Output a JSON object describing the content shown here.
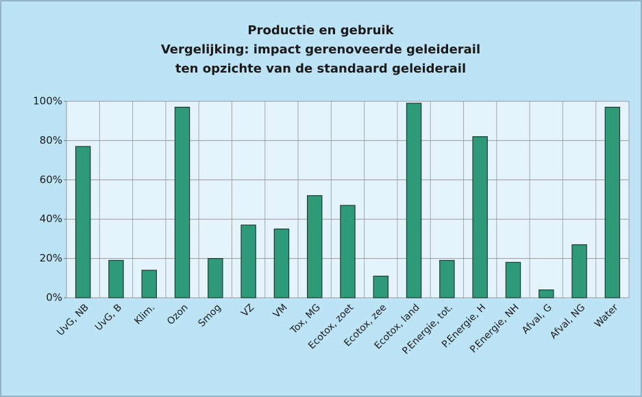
{
  "chart_data": {
    "type": "bar",
    "title": [
      "Productie en gebruik",
      "Vergelijking: impact gerenoveerde geleiderail",
      "ten opzichte van de standaard geleiderail"
    ],
    "categories": [
      "UvG, NB",
      "UvG, B",
      "Klim.",
      "Ozon",
      "Smog",
      "VZ",
      "VM",
      "Tox, MG",
      "Ecotox, zoet",
      "Ecotox, zee",
      "Ecotox, land",
      "P.Energie, tot.",
      "P.Energie, H",
      "P.Energie, NH",
      "Afval, G",
      "Afval, NG",
      "Water"
    ],
    "values": [
      77,
      19,
      14,
      97,
      20,
      37,
      35,
      52,
      47,
      11,
      99,
      19,
      82,
      18,
      4,
      27,
      97
    ],
    "color": "#2e9a78",
    "ylim": [
      0,
      100
    ],
    "yticks": [
      {
        "value": 0,
        "label": "0%"
      },
      {
        "value": 20,
        "label": "20%"
      },
      {
        "value": 40,
        "label": "40%"
      },
      {
        "value": 60,
        "label": "60%"
      },
      {
        "value": 80,
        "label": "80%"
      },
      {
        "value": 100,
        "label": "100%"
      }
    ],
    "grid": true
  }
}
